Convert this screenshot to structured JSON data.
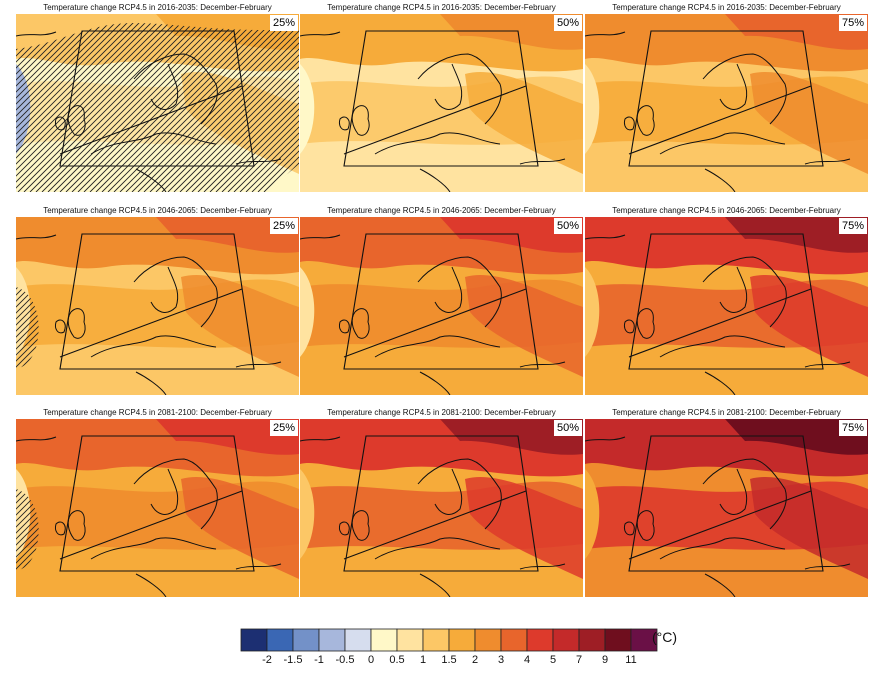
{
  "figure": {
    "unit": "(°C)",
    "legend": {
      "colors": [
        "#1c2f72",
        "#3a67b4",
        "#7391c8",
        "#a7b7dc",
        "#d6ddee",
        "#fff8c8",
        "#ffe3a0",
        "#fcc766",
        "#f6ab3a",
        "#ef8c2e",
        "#e8652c",
        "#dd3a2c",
        "#c42a2a",
        "#9e1e25",
        "#6f0e1e",
        "#6a1046"
      ],
      "tick_labels": [
        "-2",
        "-1.5",
        "-1",
        "-0.5",
        "0",
        "0.5",
        "1",
        "1.5",
        "2",
        "3",
        "4",
        "5",
        "7",
        "9",
        "11"
      ]
    },
    "panels": [
      {
        "title": "Temperature change RCP4.5 in 2016-2035: December-February",
        "percentile": "25%",
        "level": 0,
        "hatch": "wide",
        "hatch_color": "#222"
      },
      {
        "title": "Temperature change RCP4.5 in 2016-2035: December-February",
        "percentile": "50%",
        "level": 1,
        "hatch": "none"
      },
      {
        "title": "Temperature change RCP4.5 in 2016-2035: December-February",
        "percentile": "75%",
        "level": 2,
        "hatch": "none"
      },
      {
        "title": "Temperature change RCP4.5 in 2046-2065: December-February",
        "percentile": "25%",
        "level": 2,
        "hatch": "west"
      },
      {
        "title": "Temperature change RCP4.5 in 2046-2065: December-February",
        "percentile": "50%",
        "level": 3,
        "hatch": "none"
      },
      {
        "title": "Temperature change RCP4.5 in 2046-2065: December-February",
        "percentile": "75%",
        "level": 4,
        "hatch": "none"
      },
      {
        "title": "Temperature change RCP4.5 in 2081-2100: December-February",
        "percentile": "25%",
        "level": 3,
        "hatch": "west"
      },
      {
        "title": "Temperature change RCP4.5 in 2081-2100: December-February",
        "percentile": "50%",
        "level": 4,
        "hatch": "none"
      },
      {
        "title": "Temperature change RCP4.5 in 2081-2100: December-February",
        "percentile": "75%",
        "level": 5,
        "hatch": "none"
      }
    ]
  }
}
